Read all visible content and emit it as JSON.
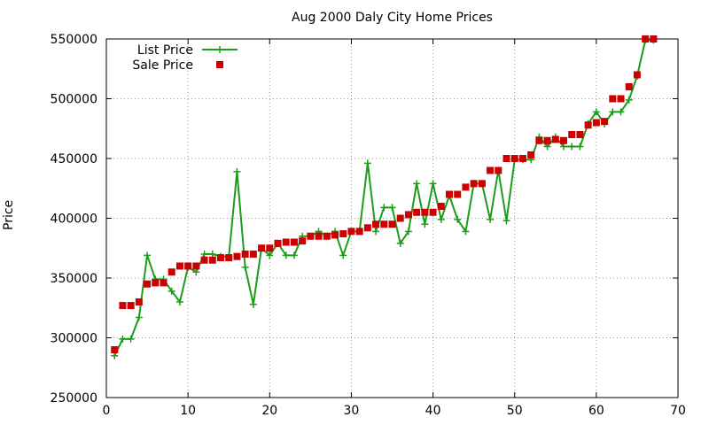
{
  "chart_data": {
    "type": "line",
    "title": "Aug 2000 Daly City Home Prices",
    "xlabel": "",
    "ylabel": "Price",
    "xlim": [
      0,
      70
    ],
    "ylim": [
      250000,
      550000
    ],
    "xticks": [
      "0",
      "10",
      "20",
      "30",
      "40",
      "50",
      "60",
      "70"
    ],
    "yticks": [
      "250000",
      "300000",
      "350000",
      "400000",
      "450000",
      "500000",
      "550000"
    ],
    "grid": true,
    "legend_position": "top-left",
    "series": [
      {
        "name": "List Price",
        "style": "line with plus markers",
        "color": "#1a9e1a",
        "x": [
          1,
          2,
          3,
          4,
          5,
          6,
          7,
          8,
          9,
          10,
          11,
          12,
          13,
          14,
          15,
          16,
          17,
          18,
          19,
          20,
          21,
          22,
          23,
          24,
          25,
          26,
          27,
          28,
          29,
          30,
          31,
          32,
          33,
          34,
          35,
          36,
          37,
          38,
          39,
          40,
          41,
          42,
          43,
          44,
          45,
          46,
          47,
          48,
          49,
          50,
          51,
          52,
          53,
          54,
          55,
          56,
          57,
          58,
          59,
          60,
          61,
          62,
          63,
          64,
          65,
          66,
          67
        ],
        "y": [
          285000,
          299000,
          299000,
          317000,
          369000,
          349000,
          349000,
          339000,
          330000,
          359000,
          355000,
          370000,
          370000,
          368000,
          368000,
          439000,
          359000,
          328000,
          375000,
          369000,
          379000,
          369000,
          369000,
          385000,
          385000,
          389000,
          385000,
          389000,
          369000,
          389000,
          389000,
          446000,
          389000,
          409000,
          409000,
          379000,
          389000,
          429000,
          395000,
          429000,
          399000,
          419000,
          399000,
          389000,
          429000,
          429000,
          399000,
          440000,
          398000,
          449000,
          449000,
          449000,
          468000,
          460000,
          468000,
          460000,
          460000,
          460000,
          479000,
          489000,
          479000,
          489000,
          489000,
          499000,
          519000,
          549000,
          549000
        ]
      },
      {
        "name": "Sale Price",
        "style": "square markers",
        "color": "#cc0000",
        "x": [
          1,
          2,
          3,
          4,
          5,
          6,
          7,
          8,
          9,
          10,
          11,
          12,
          13,
          14,
          15,
          16,
          17,
          18,
          19,
          20,
          21,
          22,
          23,
          24,
          25,
          26,
          27,
          28,
          29,
          30,
          31,
          32,
          33,
          34,
          35,
          36,
          37,
          38,
          39,
          40,
          41,
          42,
          43,
          44,
          45,
          46,
          47,
          48,
          49,
          50,
          51,
          52,
          53,
          54,
          55,
          56,
          57,
          58,
          59,
          60,
          61,
          62,
          63,
          64,
          65,
          66,
          67
        ],
        "y": [
          290000,
          327000,
          327000,
          330000,
          345000,
          346000,
          346000,
          355000,
          360000,
          360000,
          360000,
          365000,
          365000,
          367000,
          367000,
          368000,
          370000,
          370000,
          375000,
          375000,
          379000,
          380000,
          380000,
          381000,
          385000,
          385000,
          385000,
          386000,
          387000,
          389000,
          389000,
          392000,
          395000,
          395000,
          395000,
          400000,
          403000,
          405000,
          405000,
          405000,
          410000,
          420000,
          420000,
          426000,
          429000,
          429000,
          440000,
          440000,
          450000,
          450000,
          450000,
          453000,
          465000,
          465000,
          466000,
          465000,
          470000,
          470000,
          478000,
          480000,
          481000,
          500000,
          500000,
          510000,
          520000,
          550000,
          550000
        ]
      }
    ]
  }
}
